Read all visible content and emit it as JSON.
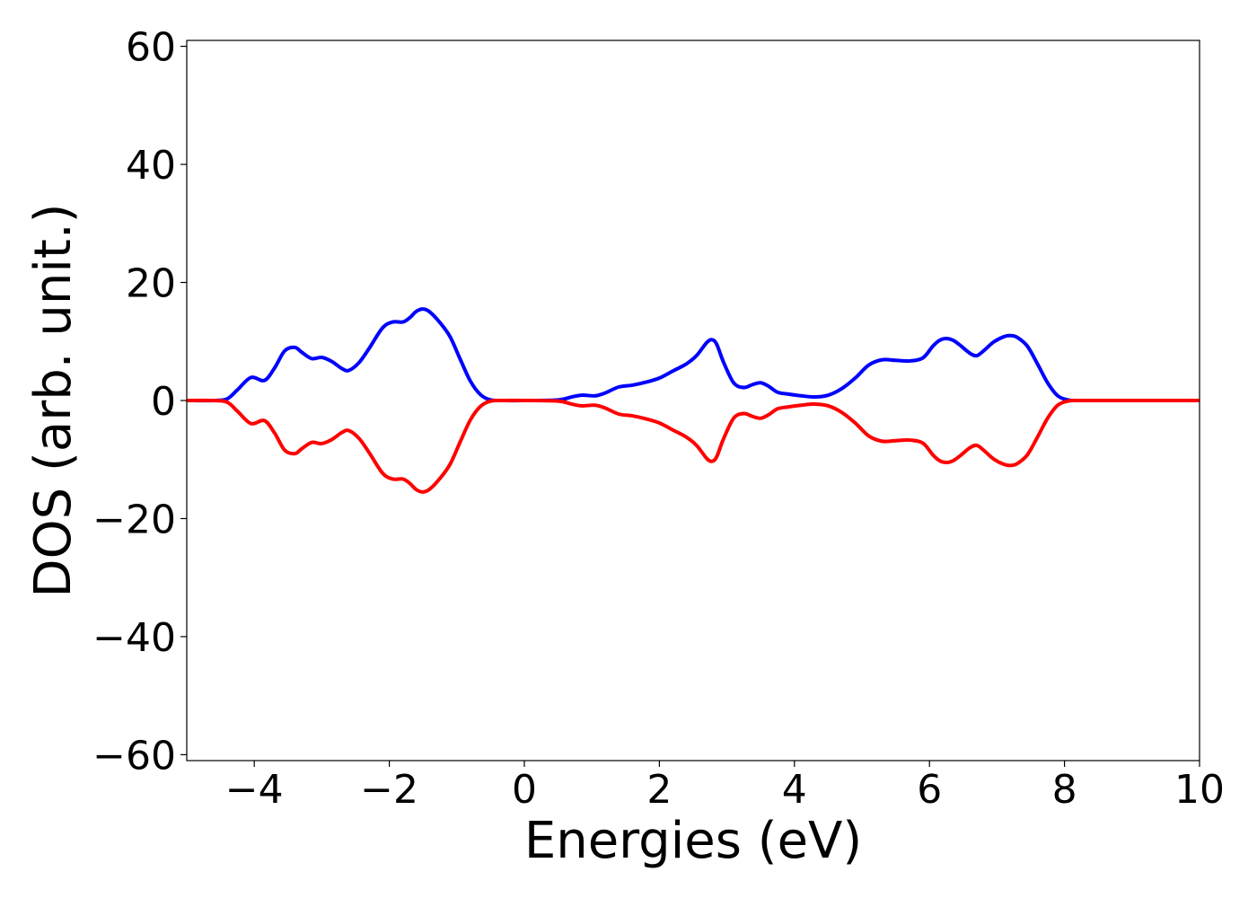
{
  "chart_data": {
    "type": "line",
    "title": "",
    "xlabel": "Energies (eV)",
    "ylabel": "DOS (arb. unit.)",
    "xlim": [
      -5,
      10
    ],
    "ylim": [
      -61,
      61
    ],
    "xticks": [
      -4,
      -2,
      0,
      2,
      4,
      6,
      8,
      10
    ],
    "xtick_labels": [
      "−4",
      "−2",
      "0",
      "2",
      "4",
      "6",
      "8",
      "10"
    ],
    "yticks": [
      -60,
      -40,
      -20,
      0,
      20,
      40,
      60
    ],
    "ytick_labels": [
      "−60",
      "−40",
      "−20",
      "0",
      "20",
      "40",
      "60"
    ],
    "grid": false,
    "legend": "none",
    "series": [
      {
        "color": "#0000ff",
        "x": [
          -5.0,
          -4.6,
          -4.4,
          -4.25,
          -4.05,
          -3.85,
          -3.7,
          -3.55,
          -3.4,
          -3.3,
          -3.15,
          -3.0,
          -2.85,
          -2.7,
          -2.6,
          -2.45,
          -2.3,
          -2.1,
          -1.95,
          -1.8,
          -1.7,
          -1.6,
          -1.5,
          -1.4,
          -1.25,
          -1.1,
          -0.95,
          -0.8,
          -0.65,
          -0.5,
          -0.3,
          0.0,
          0.5,
          0.7,
          0.85,
          1.05,
          1.2,
          1.4,
          1.6,
          1.8,
          2.0,
          2.2,
          2.4,
          2.55,
          2.7,
          2.78,
          2.85,
          2.95,
          3.1,
          3.25,
          3.38,
          3.5,
          3.62,
          3.75,
          3.9,
          4.1,
          4.3,
          4.5,
          4.7,
          4.9,
          5.1,
          5.3,
          5.5,
          5.7,
          5.9,
          6.05,
          6.15,
          6.25,
          6.35,
          6.45,
          6.6,
          6.7,
          6.8,
          6.95,
          7.1,
          7.2,
          7.3,
          7.45,
          7.6,
          7.75,
          7.9,
          8.05,
          8.2,
          8.5,
          10.0
        ],
        "y": [
          0,
          0,
          0.3,
          1.8,
          3.9,
          3.4,
          5.5,
          8.4,
          9.0,
          8.2,
          7.1,
          7.3,
          6.6,
          5.4,
          5.1,
          6.4,
          8.8,
          12.3,
          13.3,
          13.3,
          14.0,
          15.1,
          15.5,
          15.0,
          13.2,
          10.8,
          7.0,
          3.3,
          1.0,
          0.1,
          0,
          0,
          0.1,
          0.6,
          0.9,
          0.8,
          1.3,
          2.3,
          2.6,
          3.1,
          3.8,
          5.0,
          6.2,
          7.6,
          9.8,
          10.3,
          9.5,
          6.5,
          3.0,
          2.2,
          2.7,
          3.0,
          2.4,
          1.4,
          1.1,
          0.8,
          0.6,
          0.9,
          2.0,
          3.8,
          6.0,
          6.9,
          6.8,
          6.7,
          7.2,
          9.2,
          10.2,
          10.5,
          10.2,
          9.4,
          8.0,
          7.6,
          8.4,
          9.9,
          10.8,
          11.0,
          10.7,
          9.2,
          6.2,
          3.0,
          0.8,
          0.1,
          0,
          0,
          0
        ]
      },
      {
        "color": "#ff0000",
        "x": [
          -5.0,
          -4.6,
          -4.4,
          -4.25,
          -4.05,
          -3.85,
          -3.7,
          -3.55,
          -3.4,
          -3.3,
          -3.15,
          -3.0,
          -2.85,
          -2.7,
          -2.6,
          -2.45,
          -2.3,
          -2.1,
          -1.95,
          -1.8,
          -1.7,
          -1.6,
          -1.5,
          -1.4,
          -1.25,
          -1.1,
          -0.95,
          -0.8,
          -0.65,
          -0.5,
          -0.3,
          0.0,
          0.5,
          0.7,
          0.85,
          1.05,
          1.2,
          1.4,
          1.6,
          1.8,
          2.0,
          2.2,
          2.4,
          2.55,
          2.7,
          2.78,
          2.85,
          2.95,
          3.1,
          3.25,
          3.38,
          3.5,
          3.62,
          3.75,
          3.9,
          4.1,
          4.3,
          4.5,
          4.7,
          4.9,
          5.1,
          5.3,
          5.5,
          5.7,
          5.9,
          6.05,
          6.15,
          6.25,
          6.35,
          6.45,
          6.6,
          6.7,
          6.8,
          6.95,
          7.1,
          7.2,
          7.3,
          7.45,
          7.6,
          7.75,
          7.9,
          8.05,
          8.2,
          8.5,
          10.0
        ],
        "y": [
          0,
          0,
          -0.3,
          -1.8,
          -3.9,
          -3.4,
          -5.5,
          -8.4,
          -9.0,
          -8.2,
          -7.1,
          -7.3,
          -6.6,
          -5.4,
          -5.1,
          -6.4,
          -8.8,
          -12.3,
          -13.3,
          -13.3,
          -14.0,
          -15.1,
          -15.5,
          -15.0,
          -13.2,
          -10.8,
          -7.0,
          -3.3,
          -1.0,
          -0.1,
          0,
          0,
          -0.1,
          -0.6,
          -0.9,
          -0.8,
          -1.3,
          -2.3,
          -2.6,
          -3.1,
          -3.8,
          -5.0,
          -6.2,
          -7.6,
          -9.8,
          -10.3,
          -9.5,
          -6.5,
          -3.0,
          -2.2,
          -2.7,
          -3.0,
          -2.4,
          -1.4,
          -1.1,
          -0.8,
          -0.6,
          -0.9,
          -2.0,
          -3.8,
          -6.0,
          -6.9,
          -6.8,
          -6.7,
          -7.2,
          -9.2,
          -10.2,
          -10.5,
          -10.2,
          -9.4,
          -8.0,
          -7.6,
          -8.4,
          -9.9,
          -10.8,
          -11.0,
          -10.7,
          -9.2,
          -6.2,
          -3.0,
          -0.8,
          -0.1,
          0,
          0,
          0
        ]
      }
    ]
  }
}
